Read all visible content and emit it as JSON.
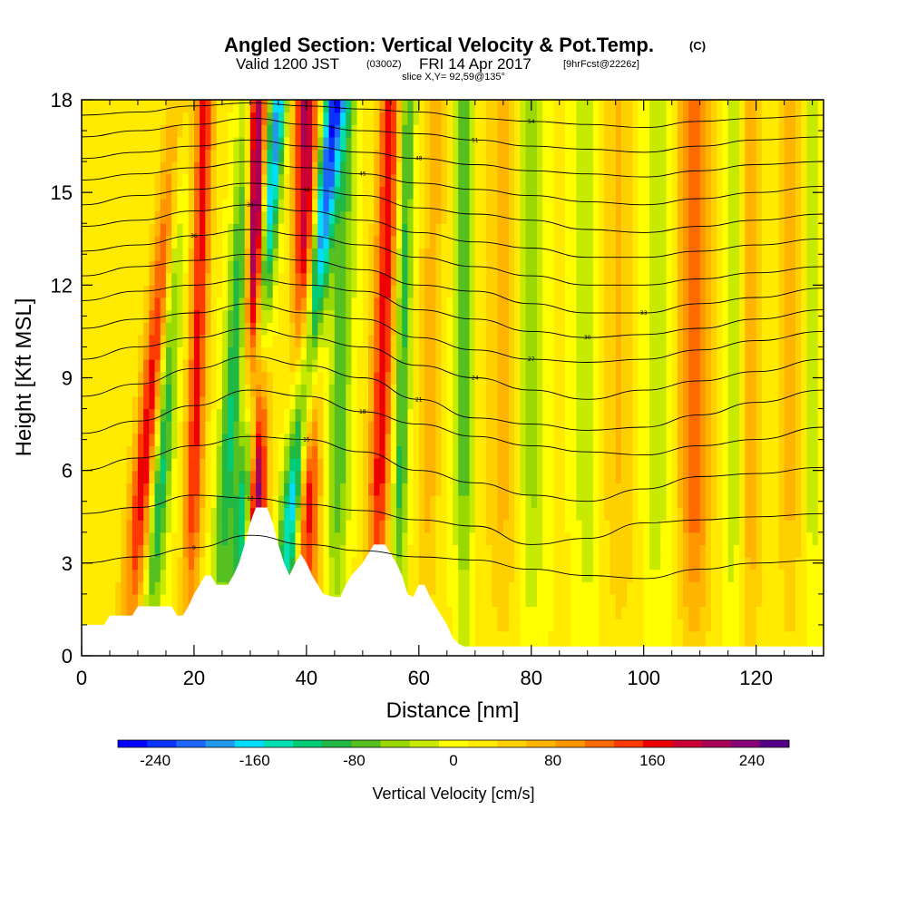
{
  "chart_data": {
    "type": "heatmap",
    "title": "Angled Section: Vertical Velocity & Pot.Temp.",
    "title_units": "(C)",
    "valid_prefix": "Valid 1200 JST",
    "valid_utc": "(0300Z)",
    "valid_date": "FRI 14 Apr 2017",
    "forecast_info": "[9hrFcst@2226z]",
    "slice_info": "slice X,Y= 92,59@135°",
    "xlabel": "Distance [nm]",
    "ylabel": "Height [Kft MSL]",
    "xlim": [
      0,
      132
    ],
    "ylim": [
      0,
      18
    ],
    "x_ticks": [
      "0",
      "20",
      "40",
      "60",
      "80",
      "100",
      "120"
    ],
    "y_ticks": [
      "0",
      "3",
      "6",
      "9",
      "12",
      "15",
      "18"
    ],
    "colorbar": {
      "label": "Vertical Velocity [cm/s]",
      "range": [
        -270,
        270
      ],
      "tick_labels": [
        "-240",
        "-160",
        "-80",
        "0",
        "80",
        "160",
        "240"
      ],
      "colors": [
        "#0000ff",
        "#0a33ff",
        "#1a66ff",
        "#2299ee",
        "#00ddff",
        "#00e0b0",
        "#00cc77",
        "#22b844",
        "#55c020",
        "#99d800",
        "#c8ea00",
        "#ffff00",
        "#ffea00",
        "#ffd000",
        "#ffb400",
        "#ff9600",
        "#ff6a00",
        "#ff3a00",
        "#ee0000",
        "#cc0033",
        "#aa0055",
        "#880077",
        "#550088"
      ]
    },
    "terrain_kft": [
      [
        0,
        1.0
      ],
      [
        4,
        1.0
      ],
      [
        5,
        1.3
      ],
      [
        9,
        1.3
      ],
      [
        10,
        1.6
      ],
      [
        16,
        1.6
      ],
      [
        17,
        1.3
      ],
      [
        18,
        1.3
      ],
      [
        19,
        1.6
      ],
      [
        20,
        2.0
      ],
      [
        21,
        2.3
      ],
      [
        22,
        2.6
      ],
      [
        23,
        2.6
      ],
      [
        24,
        2.3
      ],
      [
        26,
        2.3
      ],
      [
        27,
        2.6
      ],
      [
        28,
        3.0
      ],
      [
        29,
        3.6
      ],
      [
        30,
        4.3
      ],
      [
        31,
        4.8
      ],
      [
        33,
        4.8
      ],
      [
        34,
        4.3
      ],
      [
        35,
        3.6
      ],
      [
        36,
        3.0
      ],
      [
        37,
        2.6
      ],
      [
        38,
        3.0
      ],
      [
        39,
        3.3
      ],
      [
        40,
        3.0
      ],
      [
        41,
        2.6
      ],
      [
        42,
        2.3
      ],
      [
        43,
        2.0
      ],
      [
        45,
        1.9
      ],
      [
        46,
        1.9
      ],
      [
        47,
        2.3
      ],
      [
        48,
        2.6
      ],
      [
        50,
        3.0
      ],
      [
        51,
        3.3
      ],
      [
        52,
        3.6
      ],
      [
        54,
        3.6
      ],
      [
        55,
        3.3
      ],
      [
        56,
        3.0
      ],
      [
        57,
        2.6
      ],
      [
        58,
        2.0
      ],
      [
        59,
        1.9
      ],
      [
        60,
        2.3
      ],
      [
        61,
        2.3
      ],
      [
        62,
        1.9
      ],
      [
        63,
        1.6
      ],
      [
        64,
        1.3
      ],
      [
        65,
        1.0
      ],
      [
        66,
        0.6
      ],
      [
        67,
        0.4
      ],
      [
        68,
        0.3
      ],
      [
        132,
        0.3
      ]
    ],
    "updraft_bands": [
      {
        "x": 8,
        "tilt": 5,
        "w": 2.2,
        "v": 175
      },
      {
        "x": 19,
        "tilt": 1.5,
        "w": 1.6,
        "v": 145
      },
      {
        "x": 31,
        "tilt": 0,
        "w": 1.8,
        "v": 270
      },
      {
        "x": 40,
        "tilt": 0,
        "w": 2.2,
        "v": 195
      },
      {
        "x": 52,
        "tilt": 1.5,
        "w": 2.0,
        "v": 150
      },
      {
        "x": 61,
        "tilt": 1,
        "w": 2.0,
        "v": 55
      },
      {
        "x": 75,
        "tilt": 0,
        "w": 3.0,
        "v": 55
      },
      {
        "x": 96,
        "tilt": 0,
        "w": 3.5,
        "v": 45
      },
      {
        "x": 109,
        "tilt": 0,
        "w": 2.8,
        "v": 115
      },
      {
        "x": 119,
        "tilt": 0,
        "w": 2.0,
        "v": 70
      },
      {
        "x": 126,
        "tilt": 0,
        "w": 2.0,
        "v": 55
      }
    ],
    "downdraft_bands": [
      {
        "x": 12,
        "tilt": 3,
        "w": 1.8,
        "v": -155
      },
      {
        "x": 24,
        "tilt": 3,
        "w": 1.8,
        "v": -125
      },
      {
        "x": 27,
        "tilt": 4,
        "w": 1.6,
        "v": -210
      },
      {
        "x": 35,
        "tilt": 5,
        "w": 1.9,
        "v": -245
      },
      {
        "x": 45,
        "tilt": 1,
        "w": 2.0,
        "v": -90
      },
      {
        "x": 56,
        "tilt": 1,
        "w": 1.4,
        "v": -110
      },
      {
        "x": 68,
        "tilt": 0,
        "w": 1.6,
        "v": -85
      },
      {
        "x": 80,
        "tilt": 0,
        "w": 2.5,
        "v": -60
      },
      {
        "x": 90,
        "tilt": 0,
        "w": 2.2,
        "v": -50
      },
      {
        "x": 102,
        "tilt": 0,
        "w": 2.8,
        "v": -45
      },
      {
        "x": 116,
        "tilt": 0,
        "w": 1.6,
        "v": -55
      },
      {
        "x": 130,
        "tilt": 0,
        "w": 1.5,
        "v": -40
      }
    ],
    "isentropes": [
      {
        "label": "9",
        "pts": [
          [
            0,
            3.0
          ],
          [
            10,
            3.2
          ],
          [
            20,
            3.5
          ],
          [
            30,
            3.9
          ],
          [
            40,
            3.6
          ],
          [
            50,
            3.4
          ],
          [
            60,
            3.2
          ],
          [
            70,
            3.1
          ],
          [
            80,
            2.8
          ],
          [
            90,
            2.6
          ],
          [
            100,
            2.5
          ],
          [
            110,
            2.8
          ],
          [
            120,
            3.0
          ],
          [
            132,
            3.1
          ]
        ]
      },
      {
        "label": "12",
        "pts": [
          [
            0,
            4.6
          ],
          [
            10,
            4.8
          ],
          [
            20,
            5.2
          ],
          [
            30,
            5.1
          ],
          [
            40,
            4.9
          ],
          [
            50,
            4.7
          ],
          [
            60,
            4.4
          ],
          [
            70,
            4.2
          ],
          [
            80,
            3.6
          ],
          [
            90,
            3.8
          ],
          [
            100,
            4.3
          ],
          [
            110,
            4.4
          ],
          [
            120,
            4.5
          ],
          [
            132,
            4.6
          ]
        ]
      },
      {
        "label": "15",
        "pts": [
          [
            0,
            6.0
          ],
          [
            10,
            6.4
          ],
          [
            20,
            6.8
          ],
          [
            30,
            7.1
          ],
          [
            40,
            7.0
          ],
          [
            50,
            6.6
          ],
          [
            60,
            6.0
          ],
          [
            70,
            5.6
          ],
          [
            80,
            5.2
          ],
          [
            90,
            5.0
          ],
          [
            100,
            5.4
          ],
          [
            110,
            5.8
          ],
          [
            120,
            5.9
          ],
          [
            132,
            6.1
          ]
        ]
      },
      {
        "label": "18",
        "pts": [
          [
            0,
            7.2
          ],
          [
            10,
            7.6
          ],
          [
            20,
            8.1
          ],
          [
            30,
            8.6
          ],
          [
            40,
            8.4
          ],
          [
            50,
            7.9
          ],
          [
            60,
            7.5
          ],
          [
            70,
            7.1
          ],
          [
            80,
            6.8
          ],
          [
            90,
            6.6
          ],
          [
            100,
            6.5
          ],
          [
            110,
            6.8
          ],
          [
            120,
            7.0
          ],
          [
            132,
            7.4
          ]
        ]
      },
      {
        "label": "21",
        "pts": [
          [
            0,
            8.4
          ],
          [
            10,
            8.8
          ],
          [
            20,
            9.3
          ],
          [
            30,
            9.7
          ],
          [
            40,
            9.4
          ],
          [
            50,
            9.0
          ],
          [
            60,
            8.3
          ],
          [
            70,
            7.7
          ],
          [
            80,
            7.5
          ],
          [
            90,
            7.3
          ],
          [
            100,
            7.4
          ],
          [
            110,
            7.8
          ],
          [
            120,
            8.2
          ],
          [
            132,
            8.6
          ]
        ]
      },
      {
        "label": "24",
        "pts": [
          [
            0,
            9.6
          ],
          [
            10,
            10.0
          ],
          [
            20,
            10.3
          ],
          [
            30,
            10.6
          ],
          [
            40,
            10.3
          ],
          [
            50,
            10.0
          ],
          [
            60,
            9.4
          ],
          [
            70,
            9.0
          ],
          [
            80,
            8.6
          ],
          [
            90,
            8.3
          ],
          [
            100,
            8.6
          ],
          [
            110,
            8.9
          ],
          [
            120,
            9.2
          ],
          [
            132,
            9.6
          ]
        ]
      },
      {
        "label": "27",
        "pts": [
          [
            0,
            10.6
          ],
          [
            10,
            10.9
          ],
          [
            20,
            11.1
          ],
          [
            30,
            11.4
          ],
          [
            40,
            11.1
          ],
          [
            50,
            10.9
          ],
          [
            60,
            10.3
          ],
          [
            70,
            9.9
          ],
          [
            80,
            9.6
          ],
          [
            90,
            9.5
          ],
          [
            100,
            9.6
          ],
          [
            110,
            9.9
          ],
          [
            120,
            10.2
          ],
          [
            132,
            10.5
          ]
        ]
      },
      {
        "label": "30",
        "pts": [
          [
            0,
            11.5
          ],
          [
            10,
            11.8
          ],
          [
            20,
            12.0
          ],
          [
            30,
            12.2
          ],
          [
            40,
            12.0
          ],
          [
            50,
            11.8
          ],
          [
            60,
            11.2
          ],
          [
            70,
            10.9
          ],
          [
            80,
            10.5
          ],
          [
            90,
            10.3
          ],
          [
            100,
            10.4
          ],
          [
            110,
            10.6
          ],
          [
            120,
            10.9
          ],
          [
            132,
            11.2
          ]
        ]
      },
      {
        "label": "33",
        "pts": [
          [
            0,
            12.3
          ],
          [
            10,
            12.6
          ],
          [
            20,
            12.8
          ],
          [
            30,
            13.0
          ],
          [
            40,
            12.8
          ],
          [
            50,
            12.5
          ],
          [
            60,
            12.0
          ],
          [
            70,
            11.8
          ],
          [
            80,
            11.4
          ],
          [
            90,
            11.1
          ],
          [
            100,
            11.1
          ],
          [
            110,
            11.4
          ],
          [
            120,
            11.6
          ],
          [
            132,
            11.9
          ]
        ]
      },
      {
        "label": "36",
        "pts": [
          [
            0,
            13.1
          ],
          [
            10,
            13.3
          ],
          [
            20,
            13.6
          ],
          [
            30,
            13.8
          ],
          [
            40,
            13.6
          ],
          [
            50,
            13.3
          ],
          [
            60,
            12.9
          ],
          [
            70,
            12.6
          ],
          [
            80,
            12.3
          ],
          [
            90,
            12.0
          ],
          [
            100,
            12.0
          ],
          [
            110,
            12.2
          ],
          [
            120,
            12.4
          ],
          [
            132,
            12.6
          ]
        ]
      },
      {
        "label": "39",
        "pts": [
          [
            0,
            13.9
          ],
          [
            10,
            14.1
          ],
          [
            20,
            14.4
          ],
          [
            30,
            14.6
          ],
          [
            40,
            14.4
          ],
          [
            50,
            14.1
          ],
          [
            60,
            13.7
          ],
          [
            70,
            13.4
          ],
          [
            80,
            13.2
          ],
          [
            90,
            12.9
          ],
          [
            100,
            12.9
          ],
          [
            110,
            13.1
          ],
          [
            120,
            13.3
          ],
          [
            132,
            13.5
          ]
        ]
      },
      {
        "label": "42",
        "pts": [
          [
            0,
            14.6
          ],
          [
            10,
            14.9
          ],
          [
            20,
            15.1
          ],
          [
            30,
            15.3
          ],
          [
            40,
            15.1
          ],
          [
            50,
            14.9
          ],
          [
            60,
            14.5
          ],
          [
            70,
            14.3
          ],
          [
            80,
            14.1
          ],
          [
            90,
            13.8
          ],
          [
            100,
            13.7
          ],
          [
            110,
            13.9
          ],
          [
            120,
            14.1
          ],
          [
            132,
            14.3
          ]
        ]
      },
      {
        "label": "45",
        "pts": [
          [
            0,
            15.4
          ],
          [
            10,
            15.6
          ],
          [
            20,
            15.8
          ],
          [
            30,
            16.0
          ],
          [
            40,
            15.8
          ],
          [
            50,
            15.6
          ],
          [
            60,
            15.3
          ],
          [
            70,
            15.1
          ],
          [
            80,
            14.9
          ],
          [
            90,
            14.7
          ],
          [
            100,
            14.6
          ],
          [
            110,
            14.8
          ],
          [
            120,
            15.0
          ],
          [
            132,
            15.2
          ]
        ]
      },
      {
        "label": "48",
        "pts": [
          [
            0,
            16.1
          ],
          [
            10,
            16.3
          ],
          [
            20,
            16.5
          ],
          [
            30,
            16.7
          ],
          [
            40,
            16.5
          ],
          [
            50,
            16.3
          ],
          [
            60,
            16.1
          ],
          [
            70,
            15.9
          ],
          [
            80,
            15.7
          ],
          [
            90,
            15.6
          ],
          [
            100,
            15.5
          ],
          [
            110,
            15.7
          ],
          [
            120,
            15.9
          ],
          [
            132,
            16.0
          ]
        ]
      },
      {
        "label": "51",
        "pts": [
          [
            0,
            16.8
          ],
          [
            10,
            17.0
          ],
          [
            20,
            17.2
          ],
          [
            30,
            17.4
          ],
          [
            40,
            17.2
          ],
          [
            50,
            17.0
          ],
          [
            60,
            16.9
          ],
          [
            70,
            16.7
          ],
          [
            80,
            16.5
          ],
          [
            90,
            16.4
          ],
          [
            100,
            16.3
          ],
          [
            110,
            16.5
          ],
          [
            120,
            16.7
          ],
          [
            132,
            16.8
          ]
        ]
      },
      {
        "label": "54",
        "pts": [
          [
            0,
            17.5
          ],
          [
            10,
            17.6
          ],
          [
            20,
            17.8
          ],
          [
            30,
            17.9
          ],
          [
            40,
            17.8
          ],
          [
            50,
            17.7
          ],
          [
            60,
            17.6
          ],
          [
            70,
            17.4
          ],
          [
            80,
            17.3
          ],
          [
            90,
            17.2
          ],
          [
            100,
            17.1
          ],
          [
            110,
            17.3
          ],
          [
            120,
            17.4
          ],
          [
            132,
            17.5
          ]
        ]
      }
    ]
  }
}
